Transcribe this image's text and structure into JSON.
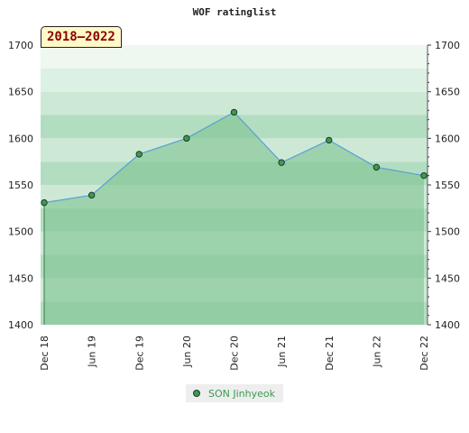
{
  "chart_data": {
    "type": "area",
    "title": "WOF ratinglist",
    "period": "2018–2022",
    "categories": [
      "Dec 18",
      "Jun 19",
      "Dec 19",
      "Jun 20",
      "Dec 20",
      "Jun 21",
      "Dec 21",
      "Jun 22",
      "Dec 22"
    ],
    "series": [
      {
        "name": "SON Jinhyeok",
        "values": [
          1531,
          1539,
          1583,
          1600,
          1628,
          1574,
          1598,
          1569,
          1560
        ]
      }
    ],
    "ylim": [
      1400,
      1700
    ],
    "yticks": [
      1400,
      1450,
      1500,
      1550,
      1600,
      1650,
      1700
    ],
    "grid": true,
    "legend_position": "bottom",
    "colors": {
      "line": "#5a9fd4",
      "marker": "#3c9a52",
      "area": "#78c08d",
      "band_dark": "#b3ddc1",
      "band_light": "#cde9d6",
      "band_lighter": "#ddf0e4",
      "band_lightest": "#eef8f1"
    }
  }
}
